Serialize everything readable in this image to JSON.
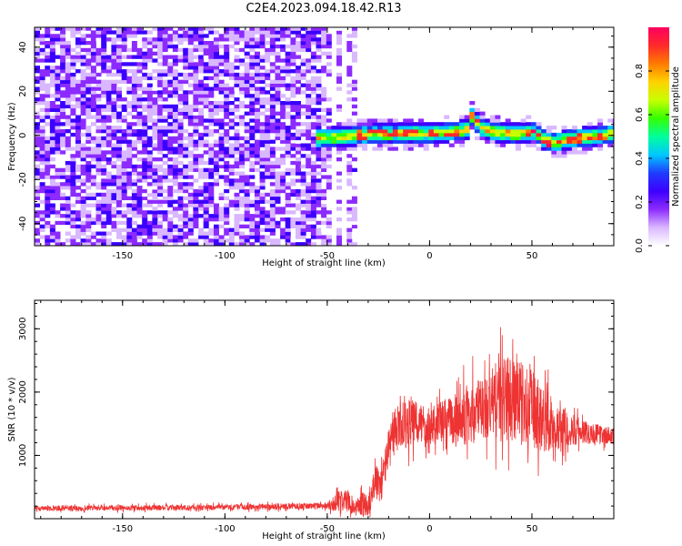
{
  "title": "C2E4.2023.094.18.42.R13",
  "chart_data": [
    {
      "type": "heatmap",
      "xlabel": "Height of straight line (km)",
      "ylabel": "Frequency (Hz)",
      "xlim": [
        -193,
        90
      ],
      "ylim": [
        -50,
        49
      ],
      "xticks": [
        -150,
        -100,
        -50,
        0,
        50
      ],
      "yticks": [
        -40,
        -20,
        0,
        20,
        40
      ],
      "colorbar": {
        "label": "Normalized spectral amplitude",
        "range": [
          0.0,
          1.0
        ],
        "ticks": [
          0.0,
          0.2,
          0.4,
          0.6,
          0.8
        ],
        "colors": [
          "#ffffff",
          "#d9b8ff",
          "#8c2bff",
          "#3b00ff",
          "#1f3cff",
          "#00c8ff",
          "#00ff9c",
          "#35ff00",
          "#c8ff00",
          "#ffd200",
          "#ff7a00",
          "#ff2a2a",
          "#ff0060"
        ]
      },
      "ridge": {
        "x": [
          -55,
          -40,
          -30,
          -20,
          -10,
          0,
          10,
          17,
          20,
          23,
          30,
          40,
          50,
          55,
          60,
          70,
          80,
          88
        ],
        "freq": [
          -2,
          -1,
          0,
          0,
          0,
          0,
          1,
          2,
          9,
          3,
          1,
          0,
          1,
          -3,
          -4,
          -2,
          -1,
          0
        ]
      }
    },
    {
      "type": "line",
      "xlabel": "Height of straight line (km)",
      "ylabel": "SNR (10 * v/v)",
      "xlim": [
        -193,
        90
      ],
      "ylim": [
        0,
        3450
      ],
      "xticks": [
        -150,
        -100,
        -50,
        0,
        50
      ],
      "yticks": [
        1000,
        2000,
        3000
      ],
      "color": "#ee3333",
      "envelope": {
        "x": [
          -193,
          -150,
          -100,
          -60,
          -50,
          -45,
          -40,
          -37,
          -33,
          -30,
          -27,
          -24,
          -20,
          -15,
          -10,
          0,
          10,
          20,
          30,
          35,
          40,
          50,
          60,
          70,
          80,
          88
        ],
        "mean": [
          160,
          170,
          180,
          200,
          210,
          260,
          300,
          150,
          250,
          180,
          600,
          500,
          1100,
          1450,
          1500,
          1500,
          1550,
          1650,
          1800,
          1900,
          1900,
          1700,
          1500,
          1400,
          1350,
          1300
        ],
        "spread": [
          70,
          80,
          80,
          90,
          100,
          300,
          300,
          150,
          400,
          300,
          500,
          500,
          600,
          700,
          700,
          600,
          700,
          900,
          1000,
          1300,
          1200,
          1200,
          800,
          450,
          300,
          250
        ]
      }
    }
  ]
}
